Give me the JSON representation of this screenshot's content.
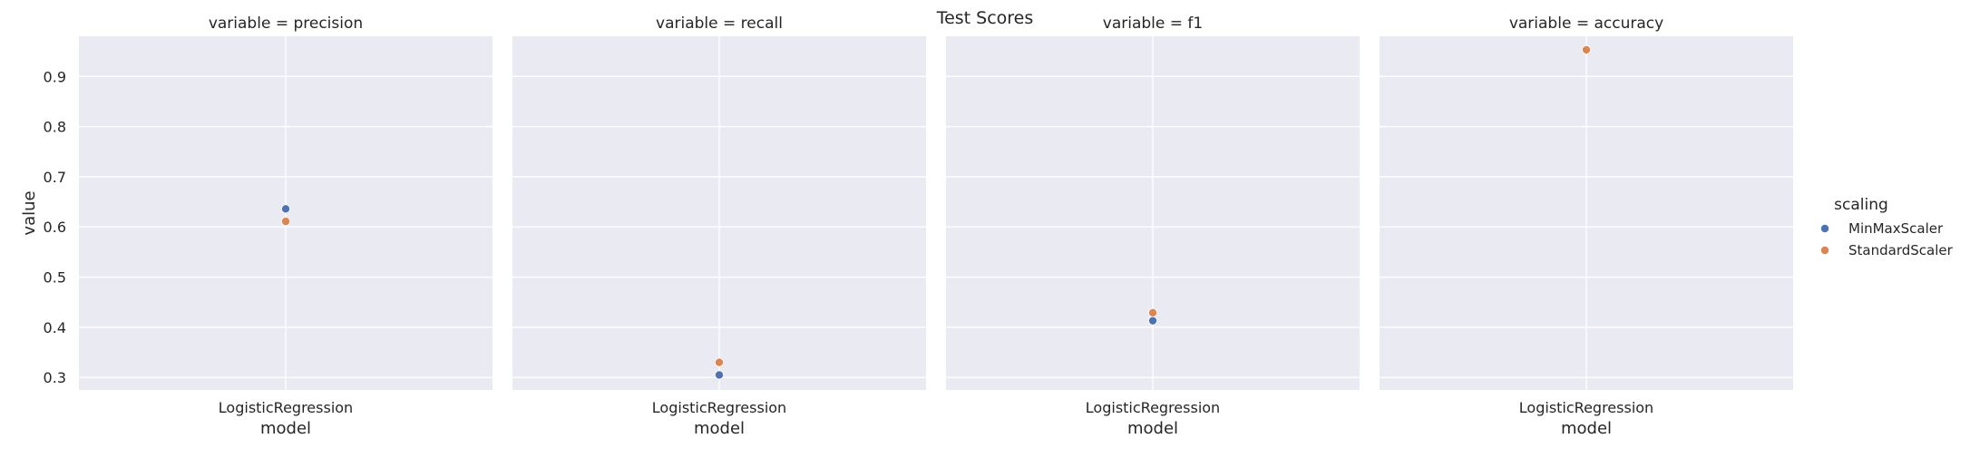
{
  "chart_data": {
    "type": "scatter",
    "title": "Test Scores",
    "xlabel": "model",
    "ylabel": "value",
    "ylim": [
      0.275,
      0.98
    ],
    "yticks": [
      0.3,
      0.4,
      0.5,
      0.6,
      0.7,
      0.8,
      0.9
    ],
    "categories": [
      "LogisticRegression"
    ],
    "grid": true,
    "facets": [
      {
        "title": "variable = precision",
        "series": [
          {
            "name": "MinMaxScaler",
            "values": [
              0.636
            ]
          },
          {
            "name": "StandardScaler",
            "values": [
              0.611
            ]
          }
        ]
      },
      {
        "title": "variable = recall",
        "series": [
          {
            "name": "MinMaxScaler",
            "values": [
              0.305
            ]
          },
          {
            "name": "StandardScaler",
            "values": [
              0.33
            ]
          }
        ]
      },
      {
        "title": "variable = f1",
        "series": [
          {
            "name": "MinMaxScaler",
            "values": [
              0.413
            ]
          },
          {
            "name": "StandardScaler",
            "values": [
              0.429
            ]
          }
        ]
      },
      {
        "title": "variable = accuracy",
        "series": [
          {
            "name": "MinMaxScaler",
            "values": [
              0.953
            ]
          },
          {
            "name": "StandardScaler",
            "values": [
              0.953
            ]
          }
        ]
      }
    ],
    "legend": {
      "title": "scaling",
      "placement": "right",
      "entries": [
        {
          "name": "MinMaxScaler",
          "color": "#4c72b0"
        },
        {
          "name": "StandardScaler",
          "color": "#dd8452"
        }
      ]
    },
    "colors": {
      "panel_bg": "#eaeaf2",
      "grid": "#ffffff"
    }
  }
}
